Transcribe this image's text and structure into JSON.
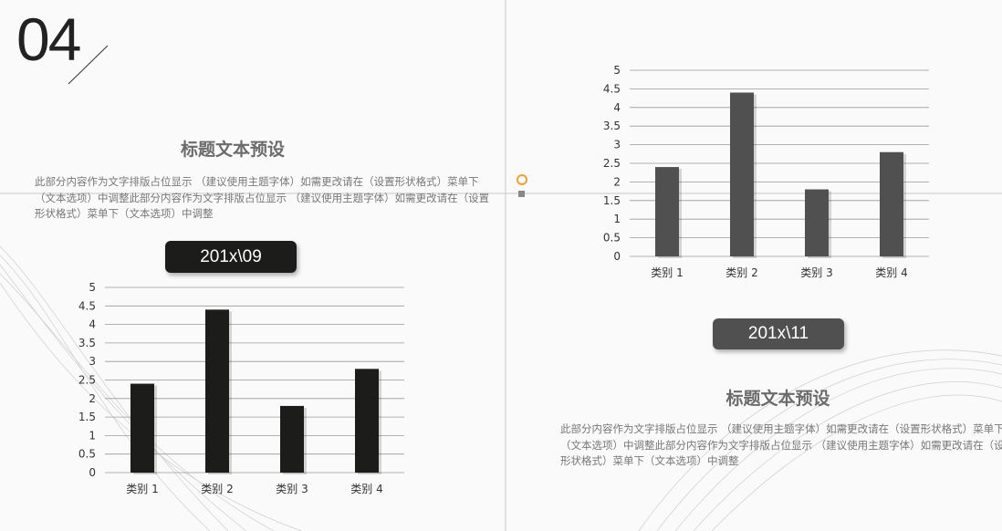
{
  "slide_number": "04",
  "left": {
    "title": "标题文本预设",
    "paragraph": "此部分内容作为文字排版占位显示 （建议使用主题字体）如需更改请在（设置形状格式）菜单下（文本选项）中调整此部分内容作为文字排版占位显示 （建议使用主题字体）如需更改请在（设置形状格式）菜单下（文本选项）中调整",
    "pill": "201x\\09"
  },
  "right": {
    "title": "标题文本预设",
    "paragraph": "此部分内容作为文字排版占位显示 （建议使用主题字体）如需更改请在（设置形状格式）菜单下（文本选项）中调整此部分内容作为文字排版占位显示 （建议使用主题字体）如需更改请在（设置形状格式）菜单下（文本选项）中调整",
    "pill": "201x\\11"
  },
  "colors": {
    "left_bar": "#1c1c1a",
    "right_bar": "#505050",
    "accent": "#f0a030"
  },
  "chart_data": [
    {
      "type": "bar",
      "categories": [
        "类别 1",
        "类别 2",
        "类别 3",
        "类别 4"
      ],
      "values": [
        2.4,
        4.4,
        1.8,
        2.8
      ],
      "ylim": [
        0,
        5
      ],
      "yticks": [
        "0",
        "0.5",
        "1",
        "1.5",
        "2",
        "2.5",
        "3",
        "3.5",
        "4",
        "4.5",
        "5"
      ],
      "grid": true
    },
    {
      "type": "bar",
      "categories": [
        "类别 1",
        "类别 2",
        "类别 3",
        "类别 4"
      ],
      "values": [
        2.4,
        4.4,
        1.8,
        2.8
      ],
      "ylim": [
        0,
        5
      ],
      "yticks": [
        "0",
        "0.5",
        "1",
        "1.5",
        "2",
        "2.5",
        "3",
        "3.5",
        "4",
        "4.5",
        "5"
      ],
      "grid": true
    }
  ]
}
